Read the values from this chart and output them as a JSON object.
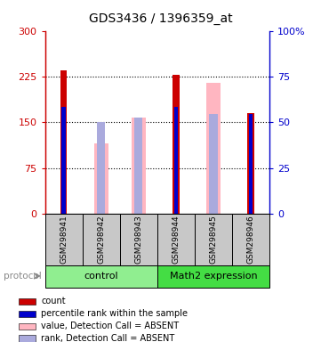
{
  "title": "GDS3436 / 1396359_at",
  "samples": [
    "GSM298941",
    "GSM298942",
    "GSM298943",
    "GSM298944",
    "GSM298945",
    "GSM298946"
  ],
  "red_values": [
    235,
    null,
    null,
    228,
    null,
    165
  ],
  "pink_values": [
    null,
    115,
    158,
    null,
    215,
    null
  ],
  "blue_values": [
    175,
    null,
    null,
    175,
    null,
    163
  ],
  "light_blue_values": [
    null,
    150,
    158,
    null,
    163,
    null
  ],
  "ylim_left": [
    0,
    300
  ],
  "yticks_left": [
    0,
    75,
    150,
    225,
    300
  ],
  "ytick_labels_left": [
    "0",
    "75",
    "150",
    "225",
    "300"
  ],
  "ytick_labels_right": [
    "0",
    "25",
    "50",
    "75",
    "100%"
  ],
  "left_axis_color": "#CC0000",
  "right_axis_color": "#0000CC",
  "control_color": "#90EE90",
  "math2_color": "#44DD44",
  "gray_color": "#C8C8C8",
  "legend_items": [
    {
      "label": "count",
      "color": "#CC0000"
    },
    {
      "label": "percentile rank within the sample",
      "color": "#0000CC"
    },
    {
      "label": "value, Detection Call = ABSENT",
      "color": "#FFB6C1"
    },
    {
      "label": "rank, Detection Call = ABSENT",
      "color": "#AAAADD"
    }
  ]
}
